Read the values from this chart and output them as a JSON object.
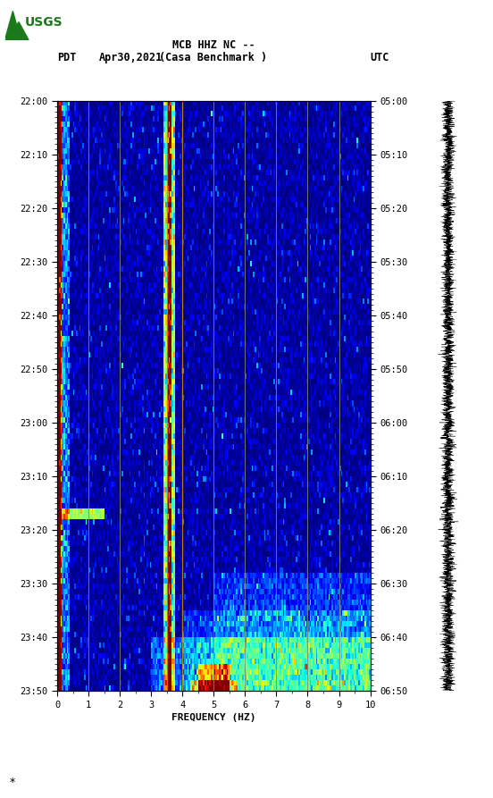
{
  "title_line1": "MCB HHZ NC --",
  "title_line2": "(Casa Benchmark )",
  "date": "Apr30,2021",
  "tz_left": "PDT",
  "tz_right": "UTC",
  "time_ticks_left": [
    "22:00",
    "22:10",
    "22:20",
    "22:30",
    "22:40",
    "22:50",
    "23:00",
    "23:10",
    "23:20",
    "23:30",
    "23:40",
    "23:50"
  ],
  "time_ticks_right": [
    "05:00",
    "05:10",
    "05:20",
    "05:30",
    "05:40",
    "05:50",
    "06:00",
    "06:10",
    "06:20",
    "06:30",
    "06:40",
    "06:50"
  ],
  "xlabel": "FREQUENCY (HZ)",
  "freq_min": 0,
  "freq_max": 10,
  "seed": 42,
  "colormap": "jet",
  "vlines_gray": [
    1.0,
    2.0,
    5.0,
    6.0,
    7.0,
    8.0,
    9.0
  ],
  "vlines_orange": [
    3.5,
    4.0
  ],
  "background": "#ffffff"
}
